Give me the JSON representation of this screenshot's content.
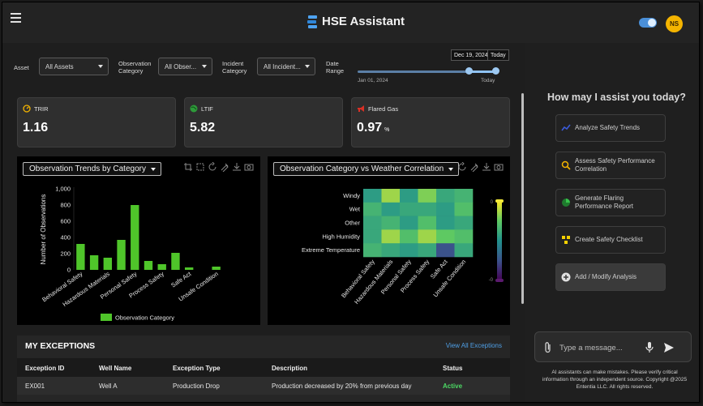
{
  "app": {
    "title": "HSE Assistant",
    "user_initials": "NS"
  },
  "filters": {
    "asset_label": "Asset",
    "asset_value": "All Assets",
    "obs_label_1": "Observation",
    "obs_label_2": "Category",
    "obs_value": "All Obser...",
    "inc_label_1": "Incident",
    "inc_label_2": "Category",
    "inc_value": "All Incident...",
    "date_label_1": "Date",
    "date_label_2": "Range",
    "date_start_tip": "Dec 19, 2024",
    "date_end_tip": "Today",
    "date_min": "Jan 01, 2024",
    "date_max": "Today",
    "date_range_fraction": [
      0.8,
      1.0
    ]
  },
  "kpis": [
    {
      "label": "TRIR",
      "value": "1.16",
      "unit": "",
      "icon": "gauge-icon",
      "color": "#f4b400"
    },
    {
      "label": "LTIF",
      "value": "5.82",
      "unit": "",
      "icon": "globe-icon",
      "color": "#2e9b3a"
    },
    {
      "label": "Flared Gas",
      "value": "0.97",
      "unit": "%",
      "icon": "megaphone-icon",
      "color": "#d93025"
    }
  ],
  "charts": {
    "left_title": "Observation Trends by Category",
    "right_title": "Observation Category vs Weather Correlation"
  },
  "chart_data": [
    {
      "type": "bar",
      "title": "Observation Trends by Category",
      "xlabel": "",
      "ylabel": "Number of Observations",
      "ylim": [
        0,
        1000
      ],
      "yticks": [
        "0",
        "200",
        "400",
        "600",
        "800",
        "1,000"
      ],
      "categories": [
        "Behavioral Safety",
        "",
        "Hazardous Materials",
        "",
        "Personal Safety",
        "",
        "Process Safety",
        "",
        "Safe Act",
        "",
        "Unsafe Condition"
      ],
      "xtick_labels": [
        "Behavioral Safety",
        "Hazardous Materials",
        "Personal Safety",
        "Process Safety",
        "Safe Act",
        "Unsafe Condition"
      ],
      "values": [
        320,
        180,
        150,
        370,
        800,
        110,
        70,
        210,
        30,
        0,
        40
      ],
      "legend": "Observation Category",
      "color": "#4fc52a"
    },
    {
      "type": "heatmap",
      "title": "Observation Category vs Weather Correlation",
      "rows": [
        "Windy",
        "Wet",
        "Other",
        "High Humidity",
        "Extreme Temperature"
      ],
      "columns": [
        "Behavioral Safety",
        "Hazardous Materials",
        "Personal Safety",
        "Process Safety",
        "Safe Act",
        "Unsafe Condition"
      ],
      "values": [
        [
          0.55,
          0.85,
          0.55,
          0.8,
          0.6,
          0.65
        ],
        [
          0.65,
          0.55,
          0.6,
          0.6,
          0.55,
          0.7
        ],
        [
          0.6,
          0.65,
          0.55,
          0.7,
          0.55,
          0.6
        ],
        [
          0.6,
          0.85,
          0.7,
          0.85,
          0.75,
          0.7
        ],
        [
          0.65,
          0.6,
          0.55,
          0.6,
          0.25,
          0.6
        ]
      ],
      "colorbar_max": "0",
      "colorbar_min": "-0"
    }
  ],
  "exceptions": {
    "title": "MY EXCEPTIONS",
    "view_all": "View All Exceptions",
    "columns": [
      "Exception ID",
      "Well Name",
      "Exception Type",
      "Description",
      "Status"
    ],
    "rows": [
      [
        "EX001",
        "Well A",
        "Production Drop",
        "Production decreased by 20% from previous day",
        "Active"
      ]
    ]
  },
  "assistant": {
    "title": "How may I assist you today?",
    "buttons": [
      {
        "label": "Analyze Safety Trends",
        "icon": "trend-icon"
      },
      {
        "label": "Assess Safety Performance Correlation",
        "icon": "magnifier-icon"
      },
      {
        "label": "Generate Flaring Performance Report",
        "icon": "pie-icon"
      },
      {
        "label": "Create Safety Checklist",
        "icon": "checklist-icon"
      },
      {
        "label": "Add / Modify Analysis",
        "icon": "plus-circle-icon"
      }
    ],
    "placeholder": "Type a message...",
    "disclaimer": "AI assistants can make mistakes. Please verify critical information through an independent source. Copyright @2025 Ententia LLC. All rights reserved."
  }
}
